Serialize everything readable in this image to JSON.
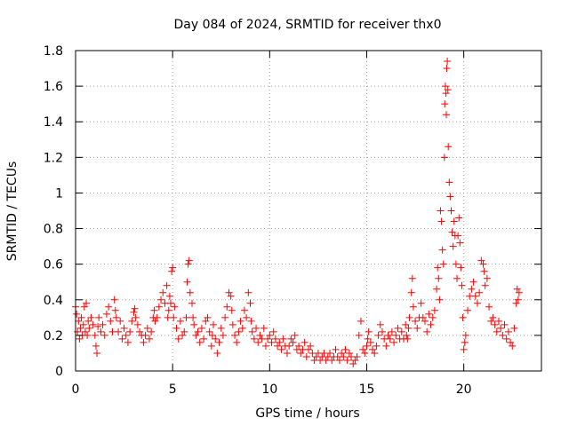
{
  "chart_data": {
    "type": "scatter",
    "title": "Day 084 of 2024, SRMTID for receiver thx0",
    "xlabel": "GPS time / hours",
    "ylabel": "SRMTID / TECUs",
    "xlim": [
      0,
      24
    ],
    "ylim": [
      0,
      1.8
    ],
    "xticks": [
      0,
      5,
      10,
      15,
      20
    ],
    "xtick_labels": [
      "0",
      "5",
      "10",
      "15",
      "20"
    ],
    "yticks": [
      0,
      0.2,
      0.4,
      0.6,
      0.8,
      1.0,
      1.2,
      1.4,
      1.6,
      1.8
    ],
    "ytick_labels": [
      "0",
      "0.2",
      "0.4",
      "0.6",
      "0.8",
      "1",
      "1.2",
      "1.4",
      "1.6",
      "1.8"
    ],
    "grid": true,
    "marker": "plus",
    "color": "#ff0000",
    "series": [
      {
        "name": "thx0",
        "points": [
          [
            0.0,
            0.36
          ],
          [
            0.05,
            0.32
          ],
          [
            0.1,
            0.22
          ],
          [
            0.15,
            0.28
          ],
          [
            0.2,
            0.18
          ],
          [
            0.25,
            0.24
          ],
          [
            0.3,
            0.3
          ],
          [
            0.35,
            0.2
          ],
          [
            0.4,
            0.26
          ],
          [
            0.45,
            0.36
          ],
          [
            0.5,
            0.22
          ],
          [
            0.55,
            0.38
          ],
          [
            0.6,
            0.2
          ],
          [
            0.65,
            0.28
          ],
          [
            0.7,
            0.24
          ],
          [
            0.8,
            0.3
          ],
          [
            0.9,
            0.26
          ],
          [
            1.0,
            0.2
          ],
          [
            1.05,
            0.14
          ],
          [
            1.1,
            0.1
          ],
          [
            1.15,
            0.25
          ],
          [
            1.2,
            0.3
          ],
          [
            1.3,
            0.22
          ],
          [
            1.4,
            0.26
          ],
          [
            1.5,
            0.2
          ],
          [
            1.6,
            0.32
          ],
          [
            1.7,
            0.36
          ],
          [
            1.8,
            0.28
          ],
          [
            1.9,
            0.22
          ],
          [
            2.0,
            0.4
          ],
          [
            2.05,
            0.34
          ],
          [
            2.1,
            0.3
          ],
          [
            2.2,
            0.22
          ],
          [
            2.3,
            0.28
          ],
          [
            2.4,
            0.18
          ],
          [
            2.5,
            0.24
          ],
          [
            2.6,
            0.2
          ],
          [
            2.7,
            0.16
          ],
          [
            2.8,
            0.22
          ],
          [
            2.9,
            0.28
          ],
          [
            3.0,
            0.33
          ],
          [
            3.05,
            0.35
          ],
          [
            3.1,
            0.3
          ],
          [
            3.2,
            0.26
          ],
          [
            3.3,
            0.22
          ],
          [
            3.4,
            0.2
          ],
          [
            3.5,
            0.16
          ],
          [
            3.6,
            0.2
          ],
          [
            3.7,
            0.24
          ],
          [
            3.8,
            0.18
          ],
          [
            3.9,
            0.22
          ],
          [
            4.0,
            0.3
          ],
          [
            4.05,
            0.34
          ],
          [
            4.1,
            0.28
          ],
          [
            4.2,
            0.3
          ],
          [
            4.3,
            0.36
          ],
          [
            4.4,
            0.4
          ],
          [
            4.5,
            0.44
          ],
          [
            4.6,
            0.38
          ],
          [
            4.7,
            0.48
          ],
          [
            4.75,
            0.3
          ],
          [
            4.8,
            0.34
          ],
          [
            4.85,
            0.42
          ],
          [
            4.9,
            0.38
          ],
          [
            4.95,
            0.56
          ],
          [
            5.0,
            0.58
          ],
          [
            5.05,
            0.3
          ],
          [
            5.1,
            0.36
          ],
          [
            5.2,
            0.24
          ],
          [
            5.3,
            0.18
          ],
          [
            5.4,
            0.28
          ],
          [
            5.5,
            0.2
          ],
          [
            5.6,
            0.22
          ],
          [
            5.7,
            0.3
          ],
          [
            5.75,
            0.5
          ],
          [
            5.8,
            0.6
          ],
          [
            5.85,
            0.62
          ],
          [
            5.9,
            0.44
          ],
          [
            6.0,
            0.38
          ],
          [
            6.05,
            0.3
          ],
          [
            6.1,
            0.26
          ],
          [
            6.2,
            0.2
          ],
          [
            6.3,
            0.22
          ],
          [
            6.4,
            0.16
          ],
          [
            6.5,
            0.24
          ],
          [
            6.6,
            0.18
          ],
          [
            6.7,
            0.28
          ],
          [
            6.8,
            0.3
          ],
          [
            6.9,
            0.22
          ],
          [
            7.0,
            0.14
          ],
          [
            7.05,
            0.2
          ],
          [
            7.1,
            0.26
          ],
          [
            7.2,
            0.18
          ],
          [
            7.3,
            0.1
          ],
          [
            7.4,
            0.16
          ],
          [
            7.5,
            0.24
          ],
          [
            7.6,
            0.2
          ],
          [
            7.7,
            0.3
          ],
          [
            7.8,
            0.36
          ],
          [
            7.9,
            0.44
          ],
          [
            8.0,
            0.42
          ],
          [
            8.05,
            0.34
          ],
          [
            8.1,
            0.26
          ],
          [
            8.2,
            0.2
          ],
          [
            8.3,
            0.16
          ],
          [
            8.4,
            0.22
          ],
          [
            8.5,
            0.28
          ],
          [
            8.6,
            0.24
          ],
          [
            8.7,
            0.34
          ],
          [
            8.8,
            0.3
          ],
          [
            8.9,
            0.44
          ],
          [
            9.0,
            0.38
          ],
          [
            9.05,
            0.28
          ],
          [
            9.1,
            0.22
          ],
          [
            9.2,
            0.18
          ],
          [
            9.3,
            0.24
          ],
          [
            9.4,
            0.16
          ],
          [
            9.5,
            0.2
          ],
          [
            9.6,
            0.18
          ],
          [
            9.7,
            0.24
          ],
          [
            9.8,
            0.14
          ],
          [
            9.9,
            0.18
          ],
          [
            10.0,
            0.2
          ],
          [
            10.1,
            0.16
          ],
          [
            10.2,
            0.22
          ],
          [
            10.3,
            0.18
          ],
          [
            10.4,
            0.14
          ],
          [
            10.5,
            0.16
          ],
          [
            10.6,
            0.12
          ],
          [
            10.7,
            0.18
          ],
          [
            10.8,
            0.14
          ],
          [
            10.9,
            0.1
          ],
          [
            11.0,
            0.14
          ],
          [
            11.1,
            0.18
          ],
          [
            11.2,
            0.16
          ],
          [
            11.3,
            0.2
          ],
          [
            11.4,
            0.12
          ],
          [
            11.5,
            0.14
          ],
          [
            11.6,
            0.1
          ],
          [
            11.7,
            0.12
          ],
          [
            11.8,
            0.16
          ],
          [
            11.9,
            0.08
          ],
          [
            12.0,
            0.12
          ],
          [
            12.1,
            0.14
          ],
          [
            12.2,
            0.1
          ],
          [
            12.3,
            0.06
          ],
          [
            12.4,
            0.08
          ],
          [
            12.5,
            0.1
          ],
          [
            12.6,
            0.06
          ],
          [
            12.7,
            0.08
          ],
          [
            12.8,
            0.1
          ],
          [
            12.9,
            0.06
          ],
          [
            13.0,
            0.08
          ],
          [
            13.1,
            0.1
          ],
          [
            13.2,
            0.06
          ],
          [
            13.3,
            0.08
          ],
          [
            13.4,
            0.12
          ],
          [
            13.5,
            0.08
          ],
          [
            13.6,
            0.06
          ],
          [
            13.7,
            0.1
          ],
          [
            13.8,
            0.08
          ],
          [
            13.9,
            0.12
          ],
          [
            14.0,
            0.06
          ],
          [
            14.1,
            0.1
          ],
          [
            14.2,
            0.08
          ],
          [
            14.3,
            0.04
          ],
          [
            14.4,
            0.06
          ],
          [
            14.5,
            0.08
          ],
          [
            14.6,
            0.2
          ],
          [
            14.7,
            0.28
          ],
          [
            14.8,
            0.12
          ],
          [
            14.9,
            0.1
          ],
          [
            15.0,
            0.14
          ],
          [
            15.05,
            0.18
          ],
          [
            15.1,
            0.22
          ],
          [
            15.2,
            0.16
          ],
          [
            15.3,
            0.12
          ],
          [
            15.4,
            0.1
          ],
          [
            15.5,
            0.14
          ],
          [
            15.6,
            0.2
          ],
          [
            15.7,
            0.26
          ],
          [
            15.8,
            0.22
          ],
          [
            15.9,
            0.18
          ],
          [
            16.0,
            0.14
          ],
          [
            16.1,
            0.2
          ],
          [
            16.2,
            0.18
          ],
          [
            16.3,
            0.22
          ],
          [
            16.4,
            0.16
          ],
          [
            16.5,
            0.2
          ],
          [
            16.6,
            0.24
          ],
          [
            16.7,
            0.18
          ],
          [
            16.8,
            0.22
          ],
          [
            16.9,
            0.18
          ],
          [
            17.0,
            0.26
          ],
          [
            17.05,
            0.2
          ],
          [
            17.1,
            0.18
          ],
          [
            17.15,
            0.24
          ],
          [
            17.2,
            0.3
          ],
          [
            17.3,
            0.44
          ],
          [
            17.35,
            0.52
          ],
          [
            17.4,
            0.36
          ],
          [
            17.5,
            0.28
          ],
          [
            17.6,
            0.24
          ],
          [
            17.7,
            0.3
          ],
          [
            17.8,
            0.38
          ],
          [
            17.9,
            0.3
          ],
          [
            18.0,
            0.28
          ],
          [
            18.1,
            0.22
          ],
          [
            18.2,
            0.32
          ],
          [
            18.3,
            0.26
          ],
          [
            18.4,
            0.3
          ],
          [
            18.5,
            0.34
          ],
          [
            18.6,
            0.46
          ],
          [
            18.65,
            0.58
          ],
          [
            18.7,
            0.52
          ],
          [
            18.75,
            0.4
          ],
          [
            18.8,
            0.9
          ],
          [
            18.85,
            0.84
          ],
          [
            18.9,
            0.68
          ],
          [
            18.95,
            0.6
          ],
          [
            19.0,
            1.2
          ],
          [
            19.02,
            1.5
          ],
          [
            19.05,
            1.6
          ],
          [
            19.08,
            1.56
          ],
          [
            19.1,
            1.44
          ],
          [
            19.12,
            1.7
          ],
          [
            19.15,
            1.74
          ],
          [
            19.18,
            1.58
          ],
          [
            19.2,
            1.26
          ],
          [
            19.25,
            1.06
          ],
          [
            19.3,
            0.98
          ],
          [
            19.35,
            0.9
          ],
          [
            19.4,
            0.78
          ],
          [
            19.45,
            0.7
          ],
          [
            19.5,
            0.84
          ],
          [
            19.55,
            0.76
          ],
          [
            19.6,
            0.6
          ],
          [
            19.65,
            0.52
          ],
          [
            19.7,
            0.76
          ],
          [
            19.75,
            0.86
          ],
          [
            19.8,
            0.72
          ],
          [
            19.85,
            0.58
          ],
          [
            19.9,
            0.48
          ],
          [
            19.95,
            0.3
          ],
          [
            20.0,
            0.12
          ],
          [
            20.05,
            0.16
          ],
          [
            20.1,
            0.2
          ],
          [
            20.2,
            0.34
          ],
          [
            20.3,
            0.42
          ],
          [
            20.4,
            0.46
          ],
          [
            20.5,
            0.5
          ],
          [
            20.6,
            0.42
          ],
          [
            20.7,
            0.38
          ],
          [
            20.8,
            0.44
          ],
          [
            20.9,
            0.62
          ],
          [
            21.0,
            0.6
          ],
          [
            21.05,
            0.56
          ],
          [
            21.1,
            0.48
          ],
          [
            21.2,
            0.52
          ],
          [
            21.3,
            0.36
          ],
          [
            21.4,
            0.28
          ],
          [
            21.5,
            0.3
          ],
          [
            21.6,
            0.26
          ],
          [
            21.7,
            0.22
          ],
          [
            21.8,
            0.28
          ],
          [
            21.9,
            0.24
          ],
          [
            22.0,
            0.2
          ],
          [
            22.1,
            0.26
          ],
          [
            22.2,
            0.18
          ],
          [
            22.3,
            0.22
          ],
          [
            22.4,
            0.16
          ],
          [
            22.5,
            0.14
          ],
          [
            22.6,
            0.24
          ],
          [
            22.7,
            0.38
          ],
          [
            22.75,
            0.46
          ],
          [
            22.8,
            0.4
          ],
          [
            22.85,
            0.44
          ]
        ]
      }
    ]
  }
}
